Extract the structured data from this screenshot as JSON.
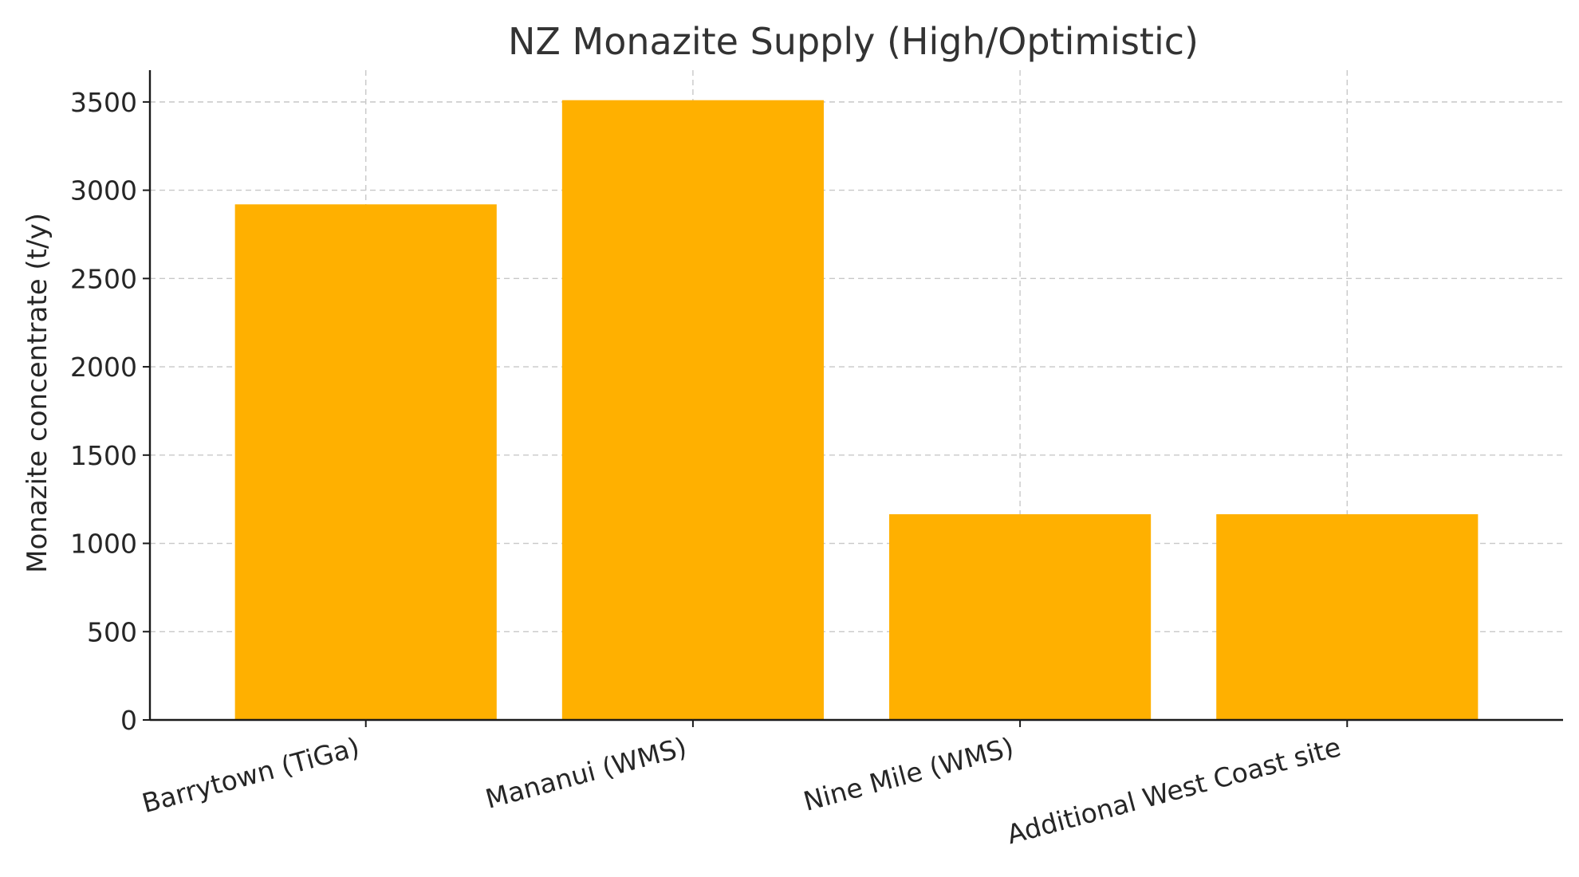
{
  "chart_data": {
    "type": "bar",
    "title": "NZ Monazite Supply (High/Optimistic)",
    "xlabel": "",
    "ylabel": "Monazite concentrate (t/y)",
    "categories": [
      "Barrytown (TiGa)",
      "Mananui (WMS)",
      "Nine Mile (WMS)",
      "Additional West Coast site"
    ],
    "values": [
      2920,
      3510,
      1165,
      1165
    ],
    "ylim": [
      0,
      3680
    ],
    "yticks": [
      0,
      500,
      1000,
      1500,
      2000,
      2500,
      3000,
      3500
    ],
    "grid": true,
    "bar_color": "#ffb000"
  }
}
